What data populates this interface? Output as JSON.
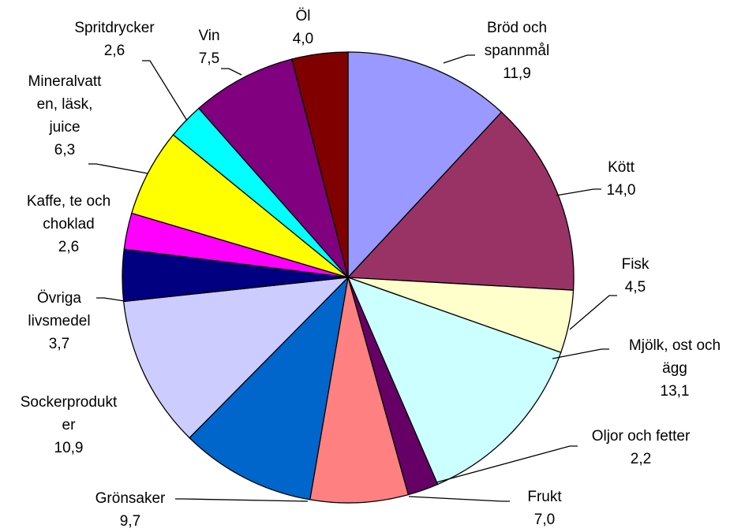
{
  "chart_data": {
    "type": "pie",
    "categories": [
      "Bröd och\nspannmål",
      "Kött",
      "Fisk",
      "Mjölk, ost och\nägg",
      "Oljor och fetter",
      "Frukt",
      "Grönsaker",
      "Sockerprodukt\ner",
      "Övriga\nlivsmedel",
      "Kaffe, te och\nchoklad",
      "Mineralvatt\nen, läsk,\njuice",
      "Spritdrycker",
      "Vin",
      "Öl"
    ],
    "values": [
      11.9,
      14.0,
      4.5,
      13.1,
      2.2,
      7.0,
      9.7,
      10.9,
      3.7,
      2.6,
      6.3,
      2.6,
      7.5,
      4.0
    ],
    "value_labels": [
      "11,9",
      "14,0",
      "4,5",
      "13,1",
      "2,2",
      "7,0",
      "9,7",
      "10,9",
      "3,7",
      "2,6",
      "6,3",
      "2,6",
      "7,5",
      "4,0"
    ],
    "colors": [
      "#9999FF",
      "#993366",
      "#FFFFCC",
      "#CCFFFF",
      "#660066",
      "#FF8080",
      "#0066CC",
      "#CCCCFF",
      "#000080",
      "#FF00FF",
      "#FFFF00",
      "#00FFFF",
      "#800080",
      "#800000"
    ]
  }
}
